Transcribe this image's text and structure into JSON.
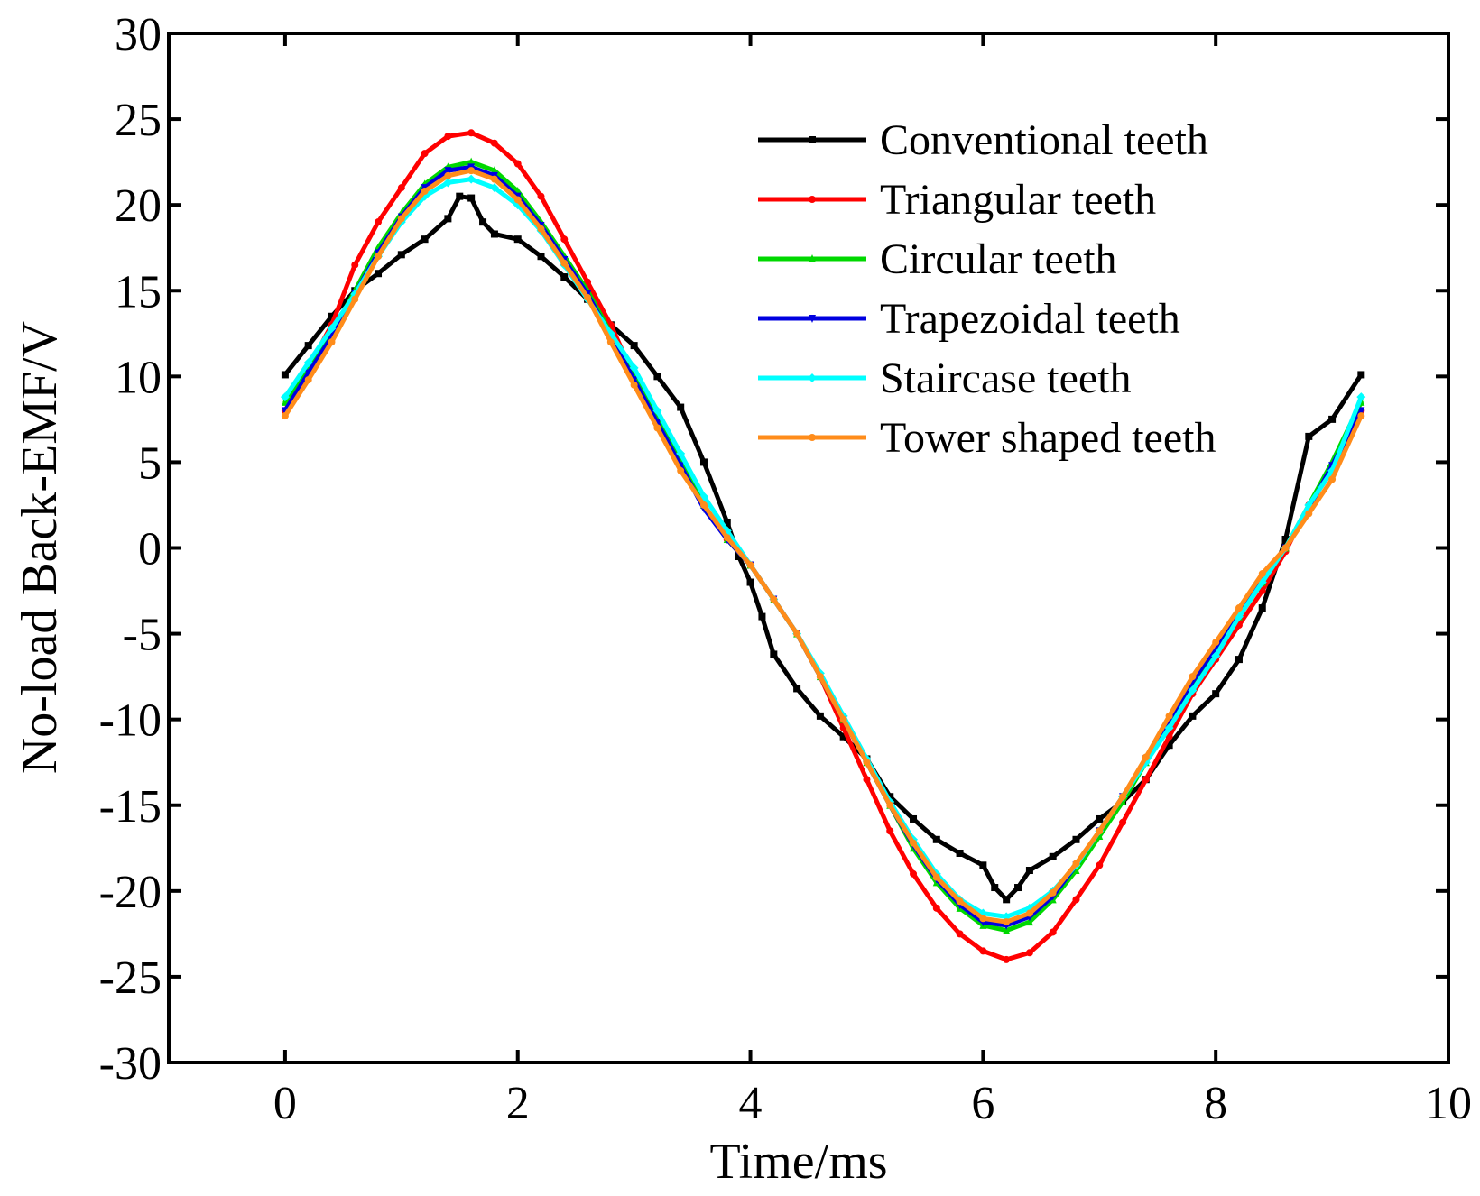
{
  "chart_data": {
    "type": "line",
    "title": "",
    "xlabel": "Time/ms",
    "ylabel": "No-load Back-EMF/V",
    "xlim": [
      -1,
      10
    ],
    "ylim": [
      -30,
      30
    ],
    "xticks": [
      0,
      2,
      4,
      6,
      8,
      10
    ],
    "yticks": [
      30,
      25,
      20,
      15,
      10,
      5,
      0,
      -5,
      -10,
      -15,
      -20,
      -25,
      -30
    ],
    "legend_position": "top-right",
    "grid": false,
    "series": [
      {
        "name": "Conventional teeth",
        "color": "#000000",
        "marker": "square",
        "x": [
          0,
          0.2,
          0.4,
          0.6,
          0.8,
          1.0,
          1.2,
          1.4,
          1.5,
          1.6,
          1.7,
          1.8,
          2.0,
          2.2,
          2.4,
          2.6,
          2.8,
          3.0,
          3.2,
          3.4,
          3.6,
          3.8,
          3.9,
          4.0,
          4.1,
          4.2,
          4.4,
          4.6,
          4.8,
          5.0,
          5.2,
          5.4,
          5.6,
          5.8,
          6.0,
          6.1,
          6.2,
          6.3,
          6.4,
          6.6,
          6.8,
          7.0,
          7.2,
          7.4,
          7.6,
          7.8,
          8.0,
          8.2,
          8.4,
          8.6,
          8.8,
          9.0,
          9.25
        ],
        "values": [
          10.1,
          11.8,
          13.5,
          15.0,
          16.0,
          17.1,
          18.0,
          19.2,
          20.5,
          20.4,
          19.0,
          18.3,
          18.0,
          17.0,
          15.8,
          14.5,
          13.0,
          11.8,
          10.0,
          8.2,
          5.0,
          1.5,
          -0.5,
          -2.0,
          -4.0,
          -6.2,
          -8.2,
          -9.8,
          -11.0,
          -12.3,
          -14.5,
          -15.8,
          -17.0,
          -17.8,
          -18.5,
          -19.8,
          -20.5,
          -19.8,
          -18.8,
          -18.0,
          -17.0,
          -15.8,
          -14.8,
          -13.5,
          -11.5,
          -9.8,
          -8.5,
          -6.5,
          -3.5,
          0.5,
          6.5,
          7.5,
          10.1
        ]
      },
      {
        "name": "Triangular teeth",
        "color": "#ff0000",
        "marker": "circle",
        "x": [
          0,
          0.2,
          0.4,
          0.6,
          0.8,
          1.0,
          1.2,
          1.4,
          1.6,
          1.8,
          2.0,
          2.2,
          2.4,
          2.6,
          2.8,
          3.0,
          3.2,
          3.4,
          3.6,
          3.8,
          4.0,
          4.2,
          4.4,
          4.6,
          4.8,
          5.0,
          5.2,
          5.4,
          5.6,
          5.8,
          6.0,
          6.2,
          6.4,
          6.6,
          6.8,
          7.0,
          7.2,
          7.4,
          7.6,
          7.8,
          8.0,
          8.2,
          8.4,
          8.6,
          8.8,
          9.0,
          9.25
        ],
        "values": [
          8.0,
          10.5,
          13.0,
          16.5,
          19.0,
          21.0,
          23.0,
          24.0,
          24.2,
          23.6,
          22.4,
          20.5,
          18.0,
          15.5,
          13.0,
          10.0,
          7.5,
          5.0,
          2.5,
          0.5,
          -1.0,
          -3.0,
          -5.0,
          -7.5,
          -10.5,
          -13.5,
          -16.5,
          -19.0,
          -21.0,
          -22.5,
          -23.5,
          -24.0,
          -23.6,
          -22.4,
          -20.5,
          -18.5,
          -16.0,
          -13.5,
          -11.0,
          -8.5,
          -6.5,
          -4.5,
          -2.5,
          -0.2,
          2.5,
          4.5,
          8.0
        ]
      },
      {
        "name": "Circular teeth",
        "color": "#00d800",
        "marker": "triangle-up",
        "x": [
          0,
          0.2,
          0.4,
          0.6,
          0.8,
          1.0,
          1.2,
          1.4,
          1.6,
          1.8,
          2.0,
          2.2,
          2.4,
          2.6,
          2.8,
          3.0,
          3.2,
          3.4,
          3.6,
          3.8,
          4.0,
          4.2,
          4.4,
          4.6,
          4.8,
          5.0,
          5.2,
          5.4,
          5.6,
          5.8,
          6.0,
          6.2,
          6.4,
          6.6,
          6.8,
          7.0,
          7.2,
          7.4,
          7.6,
          7.8,
          8.0,
          8.2,
          8.4,
          8.6,
          8.8,
          9.0,
          9.25
        ],
        "values": [
          8.5,
          10.5,
          12.5,
          15.0,
          17.5,
          19.5,
          21.2,
          22.2,
          22.5,
          22.0,
          20.8,
          19.0,
          17.0,
          15.0,
          12.5,
          10.0,
          7.5,
          5.0,
          2.5,
          0.5,
          -1.0,
          -3.0,
          -5.0,
          -7.5,
          -10.0,
          -12.5,
          -15.0,
          -17.5,
          -19.5,
          -21.0,
          -22.0,
          -22.3,
          -21.8,
          -20.5,
          -18.8,
          -16.8,
          -14.8,
          -12.5,
          -10.2,
          -8.0,
          -6.0,
          -4.0,
          -2.0,
          0.0,
          2.5,
          5.0,
          8.5
        ]
      },
      {
        "name": "Trapezoidal teeth",
        "color": "#0000e0",
        "marker": "triangle-down",
        "x": [
          0,
          0.2,
          0.4,
          0.6,
          0.8,
          1.0,
          1.2,
          1.4,
          1.6,
          1.8,
          2.0,
          2.2,
          2.4,
          2.6,
          2.8,
          3.0,
          3.2,
          3.4,
          3.6,
          3.8,
          4.0,
          4.2,
          4.4,
          4.6,
          4.8,
          5.0,
          5.2,
          5.4,
          5.6,
          5.8,
          6.0,
          6.2,
          6.4,
          6.6,
          6.8,
          7.0,
          7.2,
          7.4,
          7.6,
          7.8,
          8.0,
          8.2,
          8.4,
          8.6,
          8.8,
          9.0,
          9.25
        ],
        "values": [
          8.0,
          10.2,
          12.3,
          14.8,
          17.2,
          19.3,
          21.0,
          22.0,
          22.2,
          21.7,
          20.5,
          18.8,
          16.8,
          14.8,
          12.3,
          9.8,
          7.3,
          4.8,
          2.3,
          0.5,
          -1.0,
          -3.0,
          -5.0,
          -7.5,
          -10.0,
          -12.5,
          -15.0,
          -17.3,
          -19.3,
          -20.8,
          -21.8,
          -22.0,
          -21.5,
          -20.3,
          -18.5,
          -16.5,
          -14.5,
          -12.3,
          -10.0,
          -7.8,
          -5.8,
          -3.8,
          -1.8,
          0.0,
          2.3,
          4.8,
          8.0
        ]
      },
      {
        "name": "Staircase teeth",
        "color": "#00ffff",
        "marker": "diamond",
        "x": [
          0,
          0.2,
          0.4,
          0.6,
          0.8,
          1.0,
          1.2,
          1.4,
          1.6,
          1.8,
          2.0,
          2.2,
          2.4,
          2.6,
          2.8,
          3.0,
          3.2,
          3.4,
          3.6,
          3.8,
          4.0,
          4.2,
          4.4,
          4.6,
          4.8,
          5.0,
          5.2,
          5.4,
          5.6,
          5.8,
          6.0,
          6.2,
          6.4,
          6.6,
          6.8,
          7.0,
          7.2,
          7.4,
          7.6,
          7.8,
          8.0,
          8.2,
          8.4,
          8.6,
          8.8,
          9.0,
          9.25
        ],
        "values": [
          8.8,
          10.8,
          12.8,
          14.8,
          17.0,
          19.0,
          20.5,
          21.3,
          21.5,
          21.0,
          20.0,
          18.5,
          16.5,
          14.5,
          12.5,
          10.5,
          8.0,
          5.5,
          3.0,
          1.0,
          -1.0,
          -3.0,
          -5.0,
          -7.3,
          -9.8,
          -12.3,
          -14.8,
          -17.0,
          -19.0,
          -20.5,
          -21.3,
          -21.5,
          -21.0,
          -20.0,
          -18.5,
          -16.5,
          -14.5,
          -12.5,
          -10.5,
          -8.3,
          -6.3,
          -4.0,
          -2.0,
          0.0,
          2.5,
          4.5,
          8.8
        ]
      },
      {
        "name": "Tower shaped teeth",
        "color": "#ff8c1a",
        "marker": "circle",
        "x": [
          0,
          0.2,
          0.4,
          0.6,
          0.8,
          1.0,
          1.2,
          1.4,
          1.6,
          1.8,
          2.0,
          2.2,
          2.4,
          2.6,
          2.8,
          3.0,
          3.2,
          3.4,
          3.6,
          3.8,
          4.0,
          4.2,
          4.4,
          4.6,
          4.8,
          5.0,
          5.2,
          5.4,
          5.6,
          5.8,
          6.0,
          6.2,
          6.4,
          6.6,
          6.8,
          7.0,
          7.2,
          7.4,
          7.6,
          7.8,
          8.0,
          8.2,
          8.4,
          8.6,
          8.8,
          9.0,
          9.25
        ],
        "values": [
          7.7,
          9.8,
          12.0,
          14.5,
          17.0,
          19.2,
          20.8,
          21.7,
          22.0,
          21.5,
          20.3,
          18.6,
          16.6,
          14.6,
          12.0,
          9.5,
          7.0,
          4.5,
          2.5,
          0.6,
          -1.0,
          -3.0,
          -5.0,
          -7.5,
          -10.0,
          -12.5,
          -15.0,
          -17.2,
          -19.2,
          -20.6,
          -21.6,
          -21.8,
          -21.3,
          -20.1,
          -18.4,
          -16.5,
          -14.5,
          -12.2,
          -9.8,
          -7.5,
          -5.5,
          -3.5,
          -1.5,
          0.0,
          2.0,
          4.0,
          7.7
        ]
      }
    ]
  }
}
